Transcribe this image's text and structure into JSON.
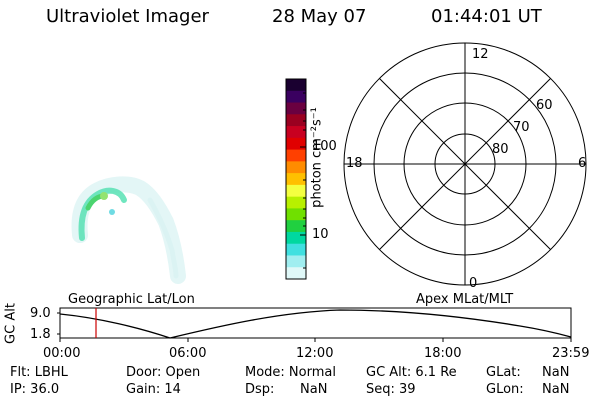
{
  "header": {
    "title": "Ultraviolet Imager",
    "date": "28 May 07",
    "time": "01:44:01 UT"
  },
  "colorbar": {
    "unit_label": "photon cm⁻²s⁻¹",
    "tick_100": "100",
    "tick_10": "10",
    "colors": [
      "#1a0030",
      "#3a0060",
      "#6a0040",
      "#9a0020",
      "#c80020",
      "#e00000",
      "#ff4000",
      "#ff8c00",
      "#ffc000",
      "#f4ff40",
      "#b8f000",
      "#70e000",
      "#20d040",
      "#00d8a0",
      "#40e0e0",
      "#a0eef0",
      "#e0f8f8"
    ]
  },
  "polar_plot": {
    "mlt_top": "12",
    "mlt_left": "18",
    "mlt_right": "6",
    "mlt_bottom": "0",
    "lat_60": "60",
    "lat_70": "70",
    "lat_80": "80"
  },
  "orbit_panel": {
    "ylabel": "GC Alt",
    "ytick_top": "9.0",
    "ytick_bottom": "1.8",
    "label_left": "Geographic Lat/Lon",
    "label_right": "Apex MLat/MLT",
    "xticks": [
      "00:00",
      "06:00",
      "12:00",
      "18:00",
      "23:59"
    ],
    "current_marker_color": "#cc0000"
  },
  "status": {
    "filter": "Flt: LBHL",
    "door": "Door: Open",
    "mode": "Mode: Normal",
    "gc_alt": "GC Alt: 6.1 Re",
    "glat_label": "GLat:",
    "glat_value": "NaN",
    "ip": "IP: 36.0",
    "gain": "Gain: 14",
    "dsp_label": "Dsp:",
    "dsp_value": "NaN",
    "seq": "Seq: 39",
    "glon_label": "GLon:",
    "glon_value": "NaN"
  }
}
